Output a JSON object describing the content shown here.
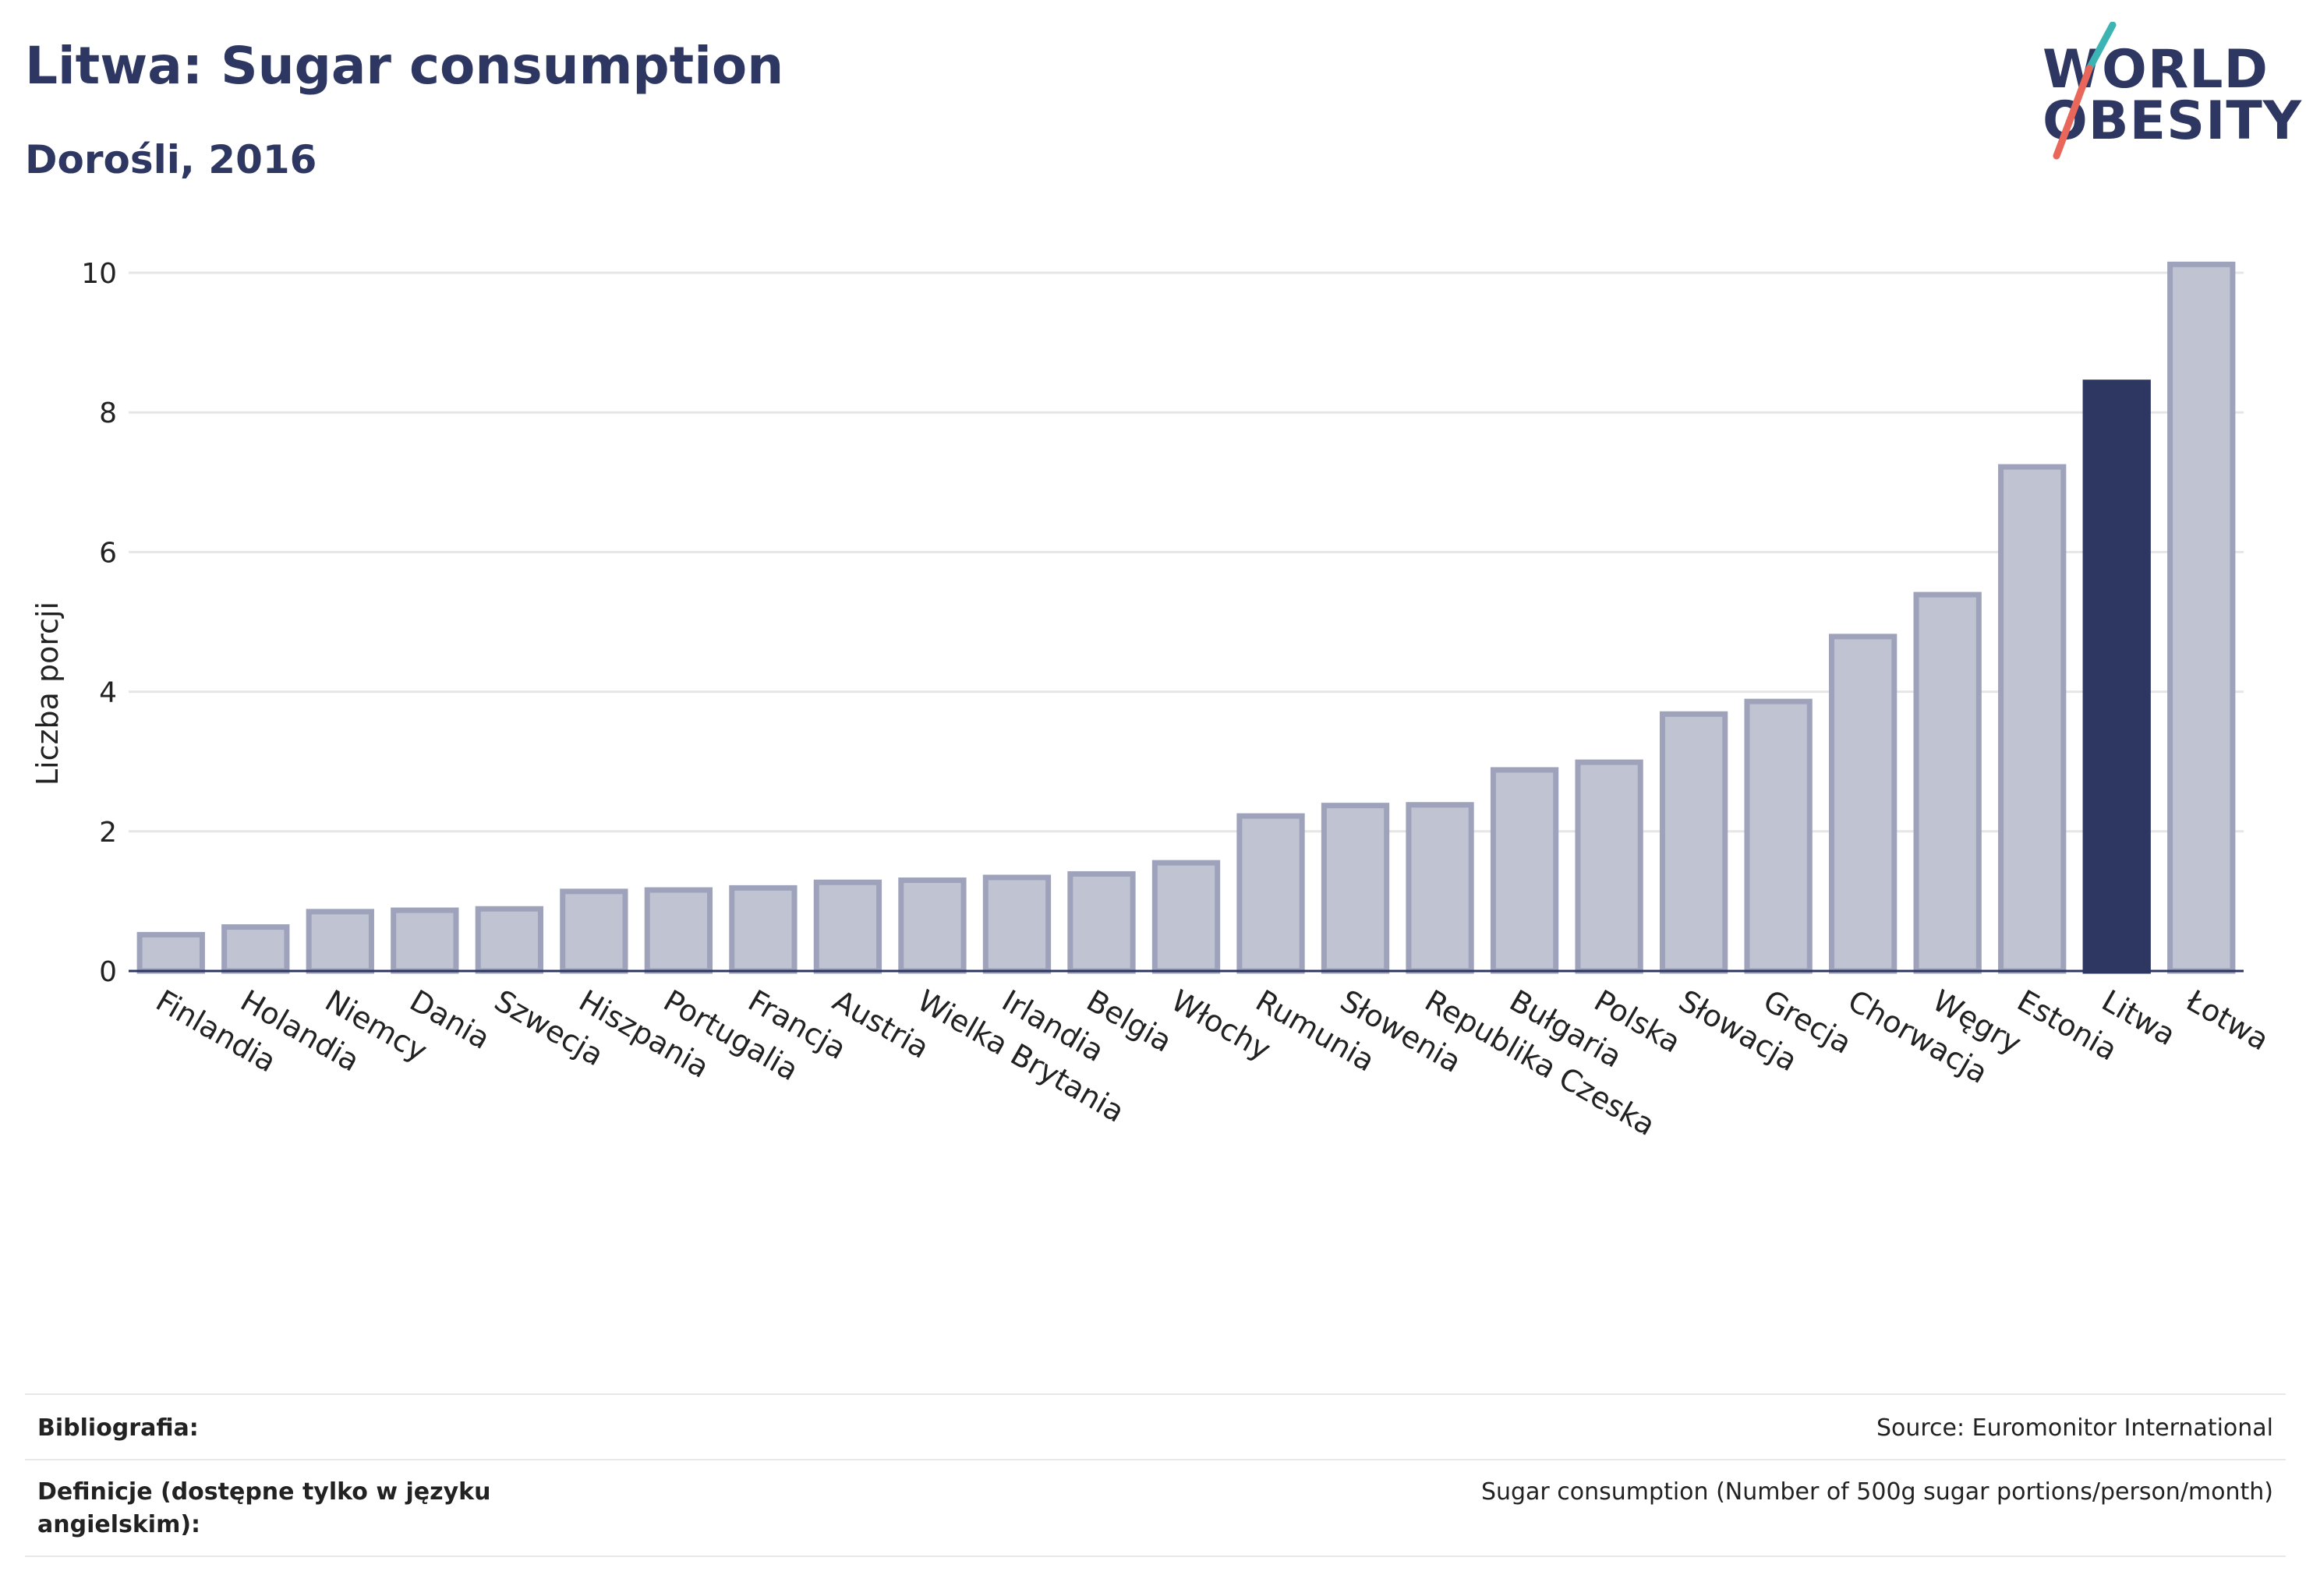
{
  "header": {
    "title": "Litwa: Sugar consumption",
    "subtitle": "Dorośli, 2016"
  },
  "logo": {
    "line1": "WORLD",
    "line2": "OBESITY",
    "accent_teal": "#3cb4b4",
    "accent_coral": "#e8675a"
  },
  "colors": {
    "bar": "#c0c3d1",
    "bar_stroke": "#9ea3bb",
    "highlight": "#2d3761",
    "grid": "#e6e6e6",
    "axis": "#2d3761"
  },
  "chart_data": {
    "type": "bar",
    "title": "Litwa: Sugar consumption",
    "subtitle": "Dorośli, 2016",
    "xlabel": "",
    "ylabel": "Liczba porcji",
    "ylim": [
      0,
      10.5
    ],
    "yticks": [
      0,
      2,
      4,
      6,
      8,
      10
    ],
    "grid": true,
    "highlight": "Litwa",
    "categories": [
      "Finlandia",
      "Holandia",
      "Niemcy",
      "Dania",
      "Szwecja",
      "Hiszpania",
      "Portugalia",
      "Francja",
      "Austria",
      "Wielka Brytania",
      "Irlandia",
      "Belgia",
      "Włochy",
      "Rumunia",
      "Słowenia",
      "Republika Czeska",
      "Bułgaria",
      "Polska",
      "Słowacja",
      "Grecja",
      "Chorwacja",
      "Węgry",
      "Estonia",
      "Litwa",
      "Łotwa"
    ],
    "values": [
      0.52,
      0.63,
      0.85,
      0.87,
      0.89,
      1.14,
      1.16,
      1.19,
      1.27,
      1.3,
      1.34,
      1.39,
      1.55,
      2.22,
      2.37,
      2.38,
      2.88,
      2.99,
      3.68,
      3.86,
      4.79,
      5.39,
      7.22,
      8.43,
      10.12
    ]
  },
  "footer": {
    "bibliography_label": "Bibliografia:",
    "bibliography_value": "Source: Euromonitor International",
    "definitions_label_1": "Definicje (dostępne tylko w języku",
    "definitions_label_2": "angielskim):",
    "definitions_value": "Sugar consumption (Number of 500g sugar portions/person/month)"
  }
}
